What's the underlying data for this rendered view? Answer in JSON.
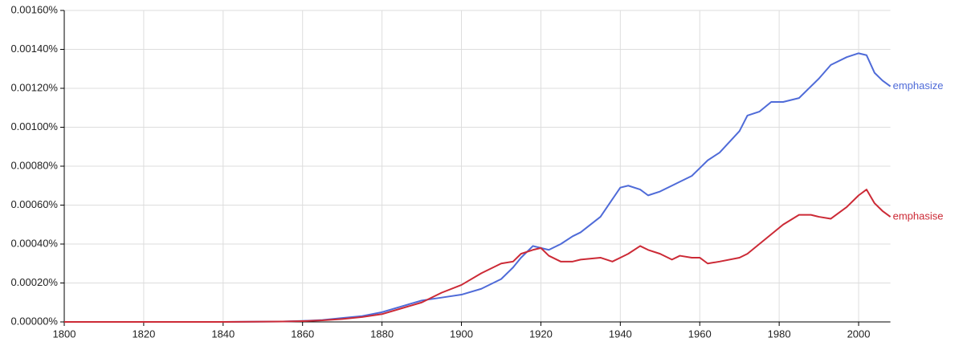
{
  "chart_data": {
    "type": "line",
    "x": [
      1800,
      1820,
      1840,
      1855,
      1860,
      1865,
      1870,
      1875,
      1880,
      1885,
      1890,
      1895,
      1900,
      1905,
      1910,
      1913,
      1915,
      1918,
      1920,
      1922,
      1925,
      1928,
      1930,
      1935,
      1938,
      1940,
      1942,
      1945,
      1947,
      1950,
      1953,
      1955,
      1958,
      1960,
      1962,
      1965,
      1970,
      1972,
      1975,
      1978,
      1981,
      1985,
      1988,
      1990,
      1993,
      1997,
      2000,
      2002,
      2004,
      2006,
      2008
    ],
    "series": [
      {
        "name": "emphasize",
        "color": "#4f6bd8",
        "values": [
          0,
          0,
          0,
          2e-06,
          5e-06,
          1e-05,
          2e-05,
          3e-05,
          5e-05,
          8e-05,
          0.00011,
          0.000125,
          0.00014,
          0.00017,
          0.00022,
          0.00028,
          0.00033,
          0.00039,
          0.00038,
          0.00037,
          0.0004,
          0.00044,
          0.00046,
          0.00054,
          0.00063,
          0.00069,
          0.0007,
          0.00068,
          0.00065,
          0.00067,
          0.0007,
          0.00072,
          0.00075,
          0.00079,
          0.00083,
          0.00087,
          0.00098,
          0.00106,
          0.00108,
          0.00113,
          0.00113,
          0.00115,
          0.00121,
          0.00125,
          0.00132,
          0.00136,
          0.00138,
          0.00137,
          0.00128,
          0.00124,
          0.00121
        ]
      },
      {
        "name": "emphasise",
        "color": "#cc2a36",
        "values": [
          0,
          0,
          0,
          2e-06,
          4e-06,
          8e-06,
          1.5e-05,
          2.5e-05,
          4e-05,
          7e-05,
          0.0001,
          0.00015,
          0.00019,
          0.00025,
          0.0003,
          0.00031,
          0.00035,
          0.00037,
          0.00038,
          0.00034,
          0.00031,
          0.00031,
          0.00032,
          0.00033,
          0.00031,
          0.00033,
          0.00035,
          0.00039,
          0.00037,
          0.00035,
          0.00032,
          0.00034,
          0.00033,
          0.00033,
          0.0003,
          0.00031,
          0.00033,
          0.00035,
          0.0004,
          0.00045,
          0.0005,
          0.00055,
          0.00055,
          0.00054,
          0.00053,
          0.00059,
          0.00065,
          0.00068,
          0.00061,
          0.00057,
          0.00054
        ]
      }
    ],
    "xlim": [
      1800,
      2008
    ],
    "xticks": [
      1800,
      1820,
      1840,
      1860,
      1880,
      1900,
      1920,
      1940,
      1960,
      1980,
      2000
    ],
    "ylim": [
      0,
      0.0016
    ],
    "yticks": [
      {
        "value": 0,
        "label": "0.00000%"
      },
      {
        "value": 0.0002,
        "label": "0.00020%"
      },
      {
        "value": 0.0004,
        "label": "0.00040%"
      },
      {
        "value": 0.0006,
        "label": "0.00060%"
      },
      {
        "value": 0.0008,
        "label": "0.00080%"
      },
      {
        "value": 0.001,
        "label": "0.00100%"
      },
      {
        "value": 0.0012,
        "label": "0.00120%"
      },
      {
        "value": 0.0014,
        "label": "0.00140%"
      },
      {
        "value": 0.0016,
        "label": "0.00160%"
      }
    ],
    "grid": true
  }
}
